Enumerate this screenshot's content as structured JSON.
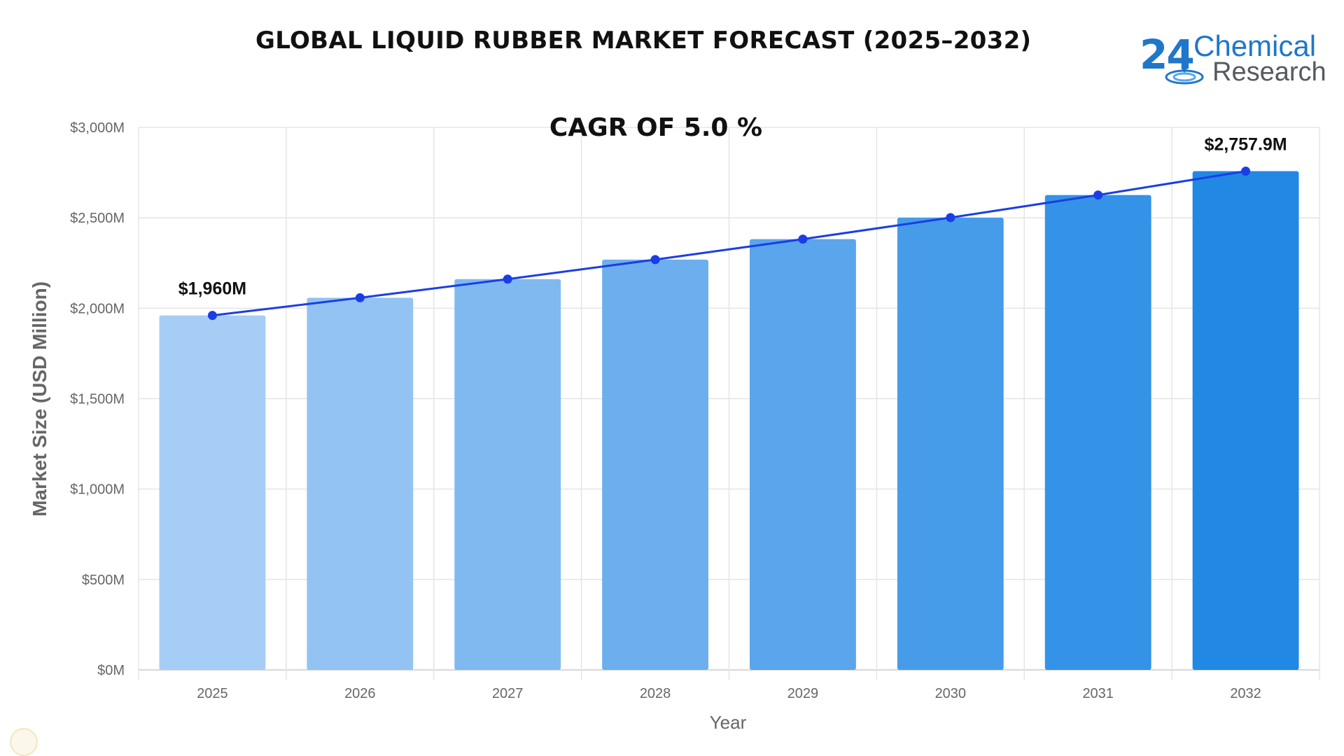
{
  "chart_data": {
    "type": "bar",
    "title": "GLOBAL LIQUID RUBBER MARKET FORECAST (2025–2032)",
    "annotation": "CAGR OF 5.0 %",
    "xlabel": "Year",
    "ylabel": "Market Size (USD Million)",
    "ylim": [
      0,
      3000
    ],
    "y_ticks": [
      {
        "value": 0,
        "label": "$0M"
      },
      {
        "value": 500,
        "label": "$500M"
      },
      {
        "value": 1000,
        "label": "$1,000M"
      },
      {
        "value": 1500,
        "label": "$1,500M"
      },
      {
        "value": 2000,
        "label": "$2,000M"
      },
      {
        "value": 2500,
        "label": "$2,500M"
      },
      {
        "value": 3000,
        "label": "$3,000M"
      }
    ],
    "categories": [
      "2025",
      "2026",
      "2027",
      "2028",
      "2029",
      "2030",
      "2031",
      "2032"
    ],
    "values": [
      1960,
      2058,
      2161,
      2269,
      2382,
      2501,
      2626,
      2757.9
    ],
    "overlay_line": {
      "type": "line",
      "values": [
        1960,
        2058,
        2161,
        2269,
        2382,
        2501,
        2626,
        2757.9
      ],
      "color": "#1a3ee6"
    },
    "data_labels": [
      {
        "category": "2025",
        "text": "$1,960M"
      },
      {
        "category": "2032",
        "text": "$2,757.9M"
      }
    ],
    "bar_colors": [
      "#a6cdf5",
      "#93c3f3",
      "#80b9f0",
      "#6dafee",
      "#5aa5eb",
      "#479ce9",
      "#3492e7",
      "#2188e4"
    ],
    "grid": true,
    "legend": "none"
  },
  "logo": {
    "number": "24",
    "line1": "Chemical",
    "line2": "Research"
  }
}
